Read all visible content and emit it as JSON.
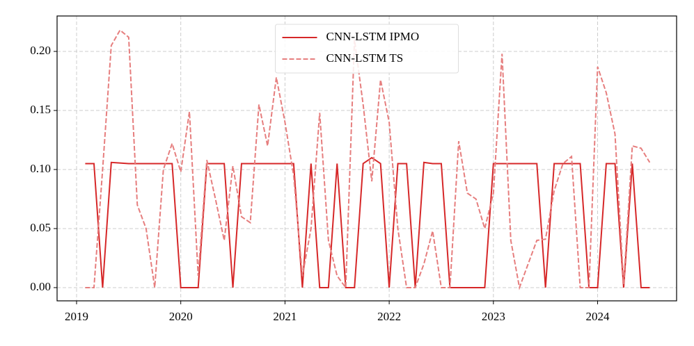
{
  "chart_data": {
    "type": "line",
    "x": [
      2019.083,
      2019.167,
      2019.25,
      2019.333,
      2019.417,
      2019.5,
      2019.583,
      2019.667,
      2019.75,
      2019.833,
      2019.917,
      2020,
      2020.083,
      2020.167,
      2020.25,
      2020.333,
      2020.417,
      2020.5,
      2020.583,
      2020.667,
      2020.75,
      2020.833,
      2020.917,
      2021,
      2021.083,
      2021.167,
      2021.25,
      2021.333,
      2021.417,
      2021.5,
      2021.583,
      2021.667,
      2021.75,
      2021.833,
      2021.917,
      2022,
      2022.083,
      2022.167,
      2022.25,
      2022.333,
      2022.417,
      2022.5,
      2022.583,
      2022.667,
      2022.75,
      2022.833,
      2022.917,
      2023,
      2023.083,
      2023.167,
      2023.25,
      2023.333,
      2023.417,
      2023.5,
      2023.583,
      2023.667,
      2023.75,
      2023.833,
      2023.917,
      2024,
      2024.083,
      2024.167,
      2024.25,
      2024.333,
      2024.417,
      2024.5
    ],
    "series": [
      {
        "name": "CNN-LSTM IPMO",
        "color": "#d62728",
        "dash": false,
        "values": [
          0.105,
          0.105,
          0,
          0.106,
          0.1055,
          0.105,
          0.105,
          0.105,
          0.105,
          0.105,
          0.105,
          0,
          0,
          0,
          0.105,
          0.105,
          0.105,
          0,
          0.105,
          0.105,
          0.105,
          0.105,
          0.105,
          0.105,
          0.105,
          0,
          0.105,
          0,
          0,
          0.105,
          0,
          0,
          0.105,
          0.11,
          0.105,
          0,
          0.105,
          0.105,
          0,
          0.106,
          0.105,
          0.105,
          0,
          0,
          0,
          0,
          0,
          0.105,
          0.105,
          0.105,
          0.105,
          0.105,
          0.105,
          0,
          0.105,
          0.105,
          0.105,
          0.105,
          0,
          0,
          0.105,
          0.105,
          0,
          0.105,
          0,
          0
        ]
      },
      {
        "name": "CNN-LSTM TS",
        "color": "#e67e7e",
        "dash": true,
        "values": [
          0,
          0,
          0.1,
          0.205,
          0.218,
          0.212,
          0.07,
          0.05,
          0,
          0.1,
          0.122,
          0.098,
          0.149,
          0.01,
          0.108,
          0.075,
          0.04,
          0.103,
          0.06,
          0.055,
          0.155,
          0.12,
          0.178,
          0.14,
          0.095,
          0.01,
          0.05,
          0.148,
          0.04,
          0.01,
          0,
          0.21,
          0.155,
          0.09,
          0.176,
          0.14,
          0.05,
          0,
          0,
          0.02,
          0.048,
          0,
          0,
          0.124,
          0.08,
          0.075,
          0.05,
          0.08,
          0.198,
          0.04,
          0,
          0.02,
          0.04,
          0.041,
          0.082,
          0.105,
          0.111,
          0,
          0,
          0.187,
          0.165,
          0.13,
          0.003,
          0.12,
          0.118,
          0.106
        ]
      }
    ],
    "xlim": [
      2018.813,
      2024.758
    ],
    "xticks": [
      2019,
      2020,
      2021,
      2022,
      2023,
      2024
    ],
    "ylim": [
      -0.0112,
      0.23
    ],
    "yticks": [
      {
        "value": 0,
        "label": "0.00"
      },
      {
        "value": 0.05,
        "label": "0.05"
      },
      {
        "value": 0.1,
        "label": "0.10"
      },
      {
        "value": 0.15,
        "label": "0.15"
      },
      {
        "value": 0.2,
        "label": "0.20"
      }
    ],
    "grid": true,
    "legend": "upper center"
  }
}
